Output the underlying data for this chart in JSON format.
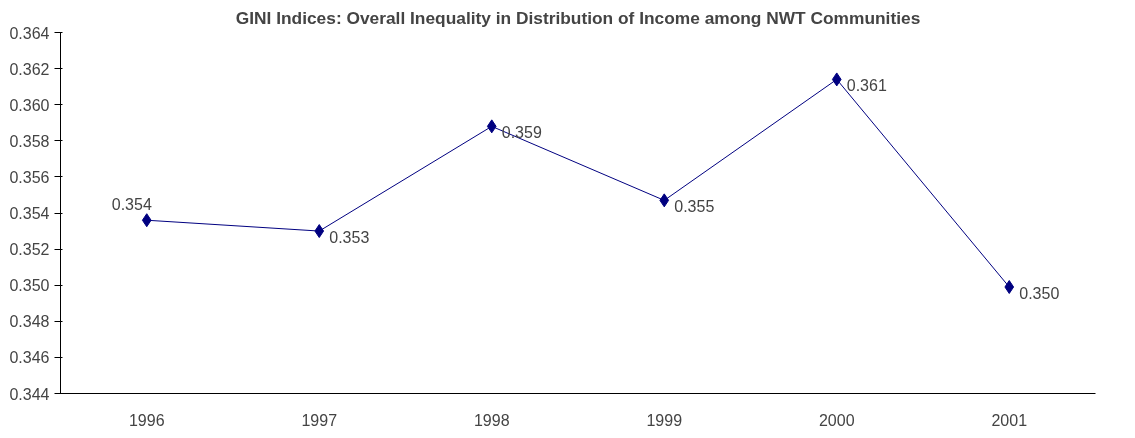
{
  "chart_data": {
    "type": "line",
    "title": "GINI Indices: Overall Inequality in Distribution of Income among NWT Communities",
    "categories": [
      "1996",
      "1997",
      "1998",
      "1999",
      "2000",
      "2001"
    ],
    "series": [
      {
        "color": "#000080",
        "values": [
          0.3536,
          0.353,
          0.3588,
          0.3547,
          0.3614,
          0.3499
        ],
        "value_labels": [
          "0.354",
          "0.353",
          "0.359",
          "0.355",
          "0.361",
          "0.350"
        ]
      }
    ],
    "ylim": [
      0.344,
      0.364
    ],
    "yticks": [
      {
        "value": 0.344,
        "label": "0.344"
      },
      {
        "value": 0.346,
        "label": "0.346"
      },
      {
        "value": 0.348,
        "label": "0.348"
      },
      {
        "value": 0.35,
        "label": "0.350"
      },
      {
        "value": 0.352,
        "label": "0.352"
      },
      {
        "value": 0.354,
        "label": "0.354"
      },
      {
        "value": 0.356,
        "label": "0.356"
      },
      {
        "value": 0.358,
        "label": "0.358"
      },
      {
        "value": 0.36,
        "label": "0.360"
      },
      {
        "value": 0.362,
        "label": "0.362"
      },
      {
        "value": 0.364,
        "label": "0.364"
      }
    ],
    "grid": false,
    "marker": "diamond",
    "line_style": "solid"
  }
}
